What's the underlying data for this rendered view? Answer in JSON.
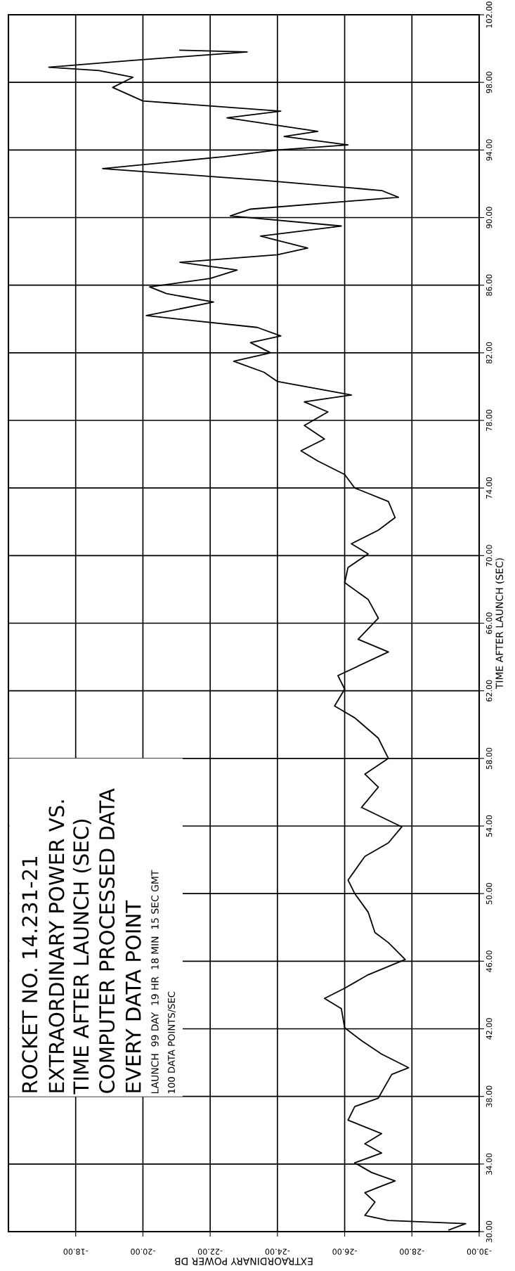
{
  "chart_data": {
    "type": "line",
    "title": "ROCKET NO. 14.231-21",
    "annotations": [
      "EXTRAORDINARY POWER VS.",
      "TIME AFTER LAUNCH (SEC)",
      "COMPUTER PROCESSED DATA",
      "EVERY DATA POINT",
      "LAUNCH  99 DAY  19 HR  18 MIN  15 SEC GMT",
      "100 DATA POINTS/SEC"
    ],
    "xlabel": "EXTRAORDINARY POWER DB",
    "ylabel": "TIME AFTER LAUNCH (SEC)",
    "xlim": [
      -16,
      -30
    ],
    "xticks": [
      {
        "value": -18,
        "label": "-18.00"
      },
      {
        "value": -20,
        "label": "-20.00"
      },
      {
        "value": -22,
        "label": "-22.00"
      },
      {
        "value": -24,
        "label": "-24.00"
      },
      {
        "value": -26,
        "label": "-26.00"
      },
      {
        "value": -28,
        "label": "-28.00"
      },
      {
        "value": -30,
        "label": "-30.00"
      }
    ],
    "ylim": [
      30,
      102
    ],
    "yticks": [
      {
        "value": 30,
        "label": "30.00"
      },
      {
        "value": 34,
        "label": "34.00"
      },
      {
        "value": 38,
        "label": "38.00"
      },
      {
        "value": 42,
        "label": "42.00"
      },
      {
        "value": 46,
        "label": "46.00"
      },
      {
        "value": 50,
        "label": "50.00"
      },
      {
        "value": 54,
        "label": "54.00"
      },
      {
        "value": 58,
        "label": "58.00"
      },
      {
        "value": 62,
        "label": "62.00"
      },
      {
        "value": 66,
        "label": "66.00"
      },
      {
        "value": 70,
        "label": "70.00"
      },
      {
        "value": 74,
        "label": "74.00"
      },
      {
        "value": 78,
        "label": "78.00"
      },
      {
        "value": 82,
        "label": "82.00"
      },
      {
        "value": 86,
        "label": "86.00"
      },
      {
        "value": 90,
        "label": "90.00"
      },
      {
        "value": 94,
        "label": "94.00"
      },
      {
        "value": 98,
        "label": "98.00"
      },
      {
        "value": 102,
        "label": "102.00"
      }
    ],
    "grid": true,
    "marker": "none",
    "line_style": "solid",
    "series": [
      {
        "color": "#000000",
        "x": [
          -29.1,
          -29.6,
          -27.3,
          -26.6,
          -26.9,
          -26.6,
          -27.1,
          -27.5,
          -26.8,
          -26.3,
          -27.1,
          -26.6,
          -27.1,
          -26.1,
          -26.3,
          -27.0,
          -27.4,
          -27.9,
          -27.1,
          -26.5,
          -26.0,
          -25.9,
          -25.4,
          -26.0,
          -26.7,
          -27.8,
          -27.3,
          -26.9,
          -26.7,
          -26.3,
          -26.1,
          -26.6,
          -27.3,
          -27.7,
          -26.5,
          -27.0,
          -26.6,
          -27.3,
          -27.0,
          -26.3,
          -25.7,
          -26.0,
          -25.8,
          -27.3,
          -26.4,
          -27.0,
          -26.7,
          -26.0,
          -26.1,
          -26.7,
          -26.2,
          -27.0,
          -27.5,
          -27.3,
          -26.3,
          -26.0,
          -25.2,
          -24.7,
          -25.4,
          -24.8,
          -25.5,
          -24.8,
          -26.2,
          -24.0,
          -23.6,
          -22.7,
          -23.8,
          -23.2,
          -24.1,
          -23.4,
          -20.1,
          -22.1,
          -20.7,
          -20.2,
          -22.0,
          -22.8,
          -21.1,
          -24.0,
          -24.9,
          -23.5,
          -25.9,
          -22.6,
          -23.2,
          -27.6,
          -27.1,
          -23.6,
          -18.8,
          -22.4,
          -24.0,
          -26.1,
          -24.2,
          -25.2,
          -22.5,
          -24.1,
          -20.0,
          -19.1,
          -19.7,
          -18.7,
          -17.2,
          -19.7,
          -23.1,
          -21.1
        ],
        "values": [
          30.1,
          30.47,
          30.66,
          30.96,
          31.75,
          32.3,
          32.7,
          33.0,
          33.5,
          34.07,
          34.65,
          35.2,
          35.8,
          36.6,
          37.4,
          37.9,
          39.3,
          39.7,
          40.5,
          41.3,
          42.06,
          43.2,
          43.8,
          44.4,
          45.2,
          46.1,
          47.1,
          47.7,
          48.9,
          50.0,
          50.8,
          52.2,
          53.0,
          53.95,
          55.1,
          56.3,
          57.07,
          58.0,
          59.2,
          60.4,
          61.1,
          62.1,
          62.9,
          64.3,
          65.05,
          66.3,
          67.4,
          68.4,
          69.3,
          70.1,
          70.7,
          71.5,
          72.25,
          73.2,
          74.0,
          74.8,
          75.6,
          76.2,
          76.9,
          77.7,
          78.5,
          79.1,
          79.5,
          80.3,
          80.85,
          81.5,
          82.0,
          82.6,
          83.0,
          83.5,
          84.2,
          85.0,
          85.5,
          85.9,
          86.4,
          86.9,
          87.35,
          87.8,
          88.2,
          88.9,
          89.5,
          90.1,
          90.5,
          91.2,
          91.6,
          92.2,
          92.9,
          93.6,
          94.0,
          94.3,
          94.8,
          95.1,
          95.9,
          96.3,
          96.9,
          97.7,
          98.3,
          98.7,
          98.9,
          99.3,
          99.8,
          99.9
        ]
      }
    ]
  }
}
